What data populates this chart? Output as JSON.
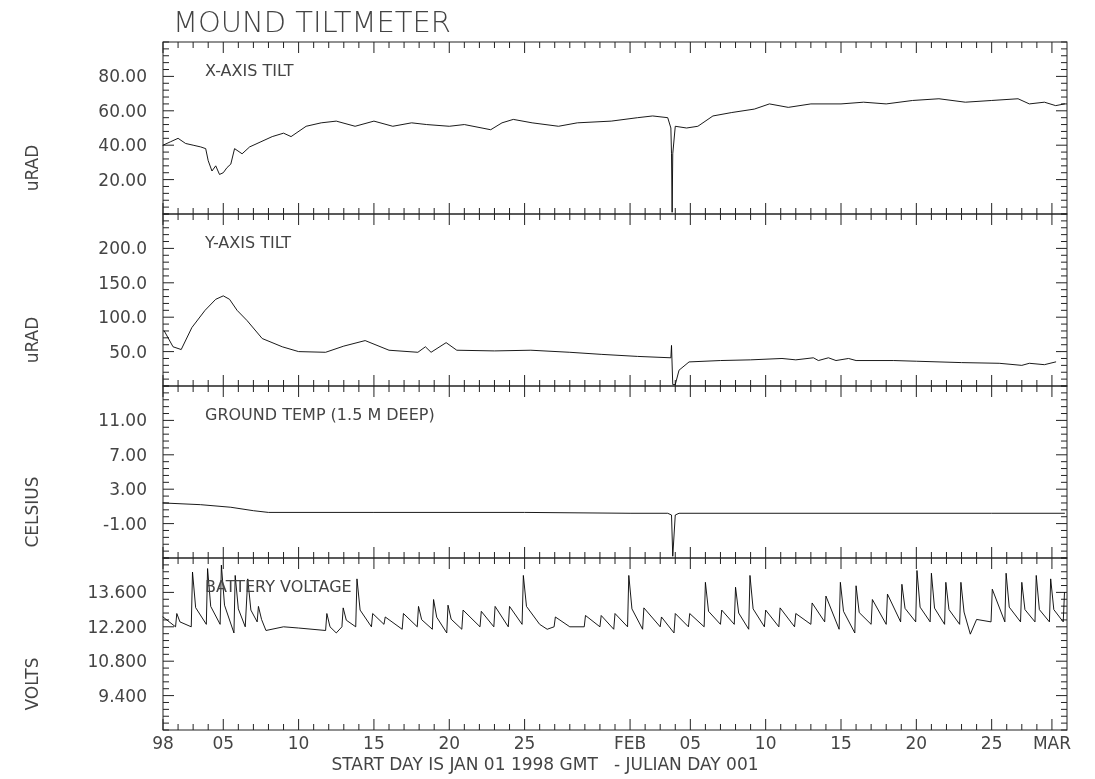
{
  "chart_data": [
    {
      "type": "line",
      "title": "MOUND TILTMETER",
      "subtitle": "X-AXIS TILT",
      "ylabel": "uRAD",
      "color": "#000000",
      "tick_labels": "y",
      "grid": false,
      "xlim": [
        "1998-01-01",
        "1998-03-02"
      ],
      "xticks": [
        {
          "value": "1998-01-01",
          "label": null
        },
        {
          "value": "1998-01-02",
          "label": null
        },
        {
          "value": "1998-01-03",
          "label": null
        },
        {
          "value": "1998-01-04",
          "label": null
        },
        {
          "value": "1998-01-05",
          "label": null
        },
        {
          "value": "1998-01-06",
          "label": null
        },
        {
          "value": "1998-01-07",
          "label": null
        },
        {
          "value": "1998-01-08",
          "label": null
        },
        {
          "value": "1998-01-09",
          "label": null
        },
        {
          "value": "1998-01-10",
          "label": null
        },
        {
          "value": "1998-01-11",
          "label": null
        },
        {
          "value": "1998-01-12",
          "label": null
        },
        {
          "value": "1998-01-13",
          "label": null
        },
        {
          "value": "1998-01-14",
          "label": null
        },
        {
          "value": "1998-01-15",
          "label": null
        },
        {
          "value": "1998-01-16",
          "label": null
        },
        {
          "value": "1998-01-17",
          "label": null
        },
        {
          "value": "1998-01-18",
          "label": null
        },
        {
          "value": "1998-01-19",
          "label": null
        },
        {
          "value": "1998-01-20",
          "label": null
        },
        {
          "value": "1998-01-21",
          "label": null
        },
        {
          "value": "1998-01-22",
          "label": null
        },
        {
          "value": "1998-01-23",
          "label": null
        },
        {
          "value": "1998-01-24",
          "label": null
        },
        {
          "value": "1998-01-25",
          "label": null
        },
        {
          "value": "1998-01-26",
          "label": null
        },
        {
          "value": "1998-01-27",
          "label": null
        },
        {
          "value": "1998-01-28",
          "label": null
        },
        {
          "value": "1998-01-29",
          "label": null
        },
        {
          "value": "1998-01-30",
          "label": null
        },
        {
          "value": "1998-01-31",
          "label": null
        },
        {
          "value": "1998-02-01",
          "label": null
        },
        {
          "value": "1998-02-02",
          "label": null
        },
        {
          "value": "1998-02-03",
          "label": null
        },
        {
          "value": "1998-02-04",
          "label": null
        },
        {
          "value": "1998-02-05",
          "label": null
        },
        {
          "value": "1998-02-06",
          "label": null
        },
        {
          "value": "1998-02-07",
          "label": null
        },
        {
          "value": "1998-02-08",
          "label": null
        },
        {
          "value": "1998-02-09",
          "label": null
        },
        {
          "value": "1998-02-10",
          "label": null
        },
        {
          "value": "1998-02-11",
          "label": null
        },
        {
          "value": "1998-02-12",
          "label": null
        },
        {
          "value": "1998-02-13",
          "label": null
        },
        {
          "value": "1998-02-14",
          "label": null
        },
        {
          "value": "1998-02-15",
          "label": null
        },
        {
          "value": "1998-02-16",
          "label": null
        },
        {
          "value": "1998-02-17",
          "label": null
        },
        {
          "value": "1998-02-18",
          "label": null
        },
        {
          "value": "1998-02-19",
          "label": null
        },
        {
          "value": "1998-02-20",
          "label": null
        },
        {
          "value": "1998-02-21",
          "label": null
        },
        {
          "value": "1998-02-22",
          "label": null
        },
        {
          "value": "1998-02-23",
          "label": null
        },
        {
          "value": "1998-02-24",
          "label": null
        },
        {
          "value": "1998-02-25",
          "label": null
        },
        {
          "value": "1998-02-26",
          "label": null
        },
        {
          "value": "1998-02-27",
          "label": null
        },
        {
          "value": "1998-02-28",
          "label": null
        },
        {
          "value": "1998-03-01",
          "label": null
        }
      ],
      "ylim": [
        0,
        100
      ],
      "yticks": [
        {
          "value": 0,
          "label": null
        },
        {
          "value": 4,
          "label": null
        },
        {
          "value": 8,
          "label": null
        },
        {
          "value": 12,
          "label": null
        },
        {
          "value": 16,
          "label": null
        },
        {
          "value": 20,
          "label": "20.00"
        },
        {
          "value": 24,
          "label": null
        },
        {
          "value": 28,
          "label": null
        },
        {
          "value": 32,
          "label": null
        },
        {
          "value": 36,
          "label": null
        },
        {
          "value": 40,
          "label": "40.00"
        },
        {
          "value": 44,
          "label": null
        },
        {
          "value": 48,
          "label": null
        },
        {
          "value": 52,
          "label": null
        },
        {
          "value": 56,
          "label": null
        },
        {
          "value": 60,
          "label": "60.00"
        },
        {
          "value": 64,
          "label": null
        },
        {
          "value": 68,
          "label": null
        },
        {
          "value": 72,
          "label": null
        },
        {
          "value": 76,
          "label": null
        },
        {
          "value": 80,
          "label": "80.00"
        },
        {
          "value": 84,
          "label": null
        },
        {
          "value": 88,
          "label": null
        },
        {
          "value": 92,
          "label": null
        },
        {
          "value": 96,
          "label": null
        },
        {
          "value": 100,
          "label": null
        }
      ],
      "x": [
        "1998-01-01T00:00",
        "1998-01-01T12:00",
        "1998-01-02T00:00",
        "1998-01-02T12:00",
        "1998-01-03T00:00",
        "1998-01-03T12:00",
        "1998-01-03T20:00",
        "1998-01-04T00:00",
        "1998-01-04T06:00",
        "1998-01-04T12:00",
        "1998-01-04T18:00",
        "1998-01-05T00:00",
        "1998-01-05T06:00",
        "1998-01-05T12:00",
        "1998-01-05T18:00",
        "1998-01-06T06:00",
        "1998-01-06T18:00",
        "1998-01-07T12:00",
        "1998-01-08T06:00",
        "1998-01-09T00:00",
        "1998-01-09T12:00",
        "1998-01-10T12:00",
        "1998-01-11T12:00",
        "1998-01-12T12:00",
        "1998-01-13T18:00",
        "1998-01-15T00:00",
        "1998-01-16T06:00",
        "1998-01-17T12:00",
        "1998-01-18T12:00",
        "1998-01-20T00:00",
        "1998-01-21T00:00",
        "1998-01-22T18:00",
        "1998-01-23T12:00",
        "1998-01-24T06:00",
        "1998-01-25T12:00",
        "1998-01-27T06:00",
        "1998-01-28T12:00",
        "1998-01-30T18:00",
        "1998-02-01T12:00",
        "1998-02-02T12:00",
        "1998-02-03T12:00",
        "1998-02-03T17:00",
        "1998-02-03T18:00",
        "1998-02-03T19:00",
        "1998-02-03T20:00",
        "1998-02-04T00:00",
        "1998-02-04T18:00",
        "1998-02-05T12:00",
        "1998-02-06T12:00",
        "1998-02-07T18:00",
        "1998-02-09T06:00",
        "1998-02-10T06:00",
        "1998-02-11T12:00",
        "1998-02-13T00:00",
        "1998-02-15T00:00",
        "1998-02-16T12:00",
        "1998-02-18T00:00",
        "1998-02-19T18:00",
        "1998-02-21T12:00",
        "1998-02-23T06:00",
        "1998-02-25T00:00",
        "1998-02-26T18:00",
        "1998-02-27T12:00",
        "1998-02-28T12:00",
        "1998-03-01T06:00",
        "1998-03-01T20:00"
      ],
      "values": [
        40,
        42,
        44,
        41,
        40,
        39,
        38,
        31,
        25,
        28,
        23,
        24,
        27,
        29,
        38,
        35,
        39,
        42,
        45,
        47,
        45,
        51,
        53,
        54,
        51,
        54,
        51,
        53,
        52,
        51,
        52,
        49,
        53,
        55,
        53,
        51,
        53,
        54,
        56,
        57,
        56,
        50,
        35,
        1,
        35,
        51,
        50,
        51,
        57,
        59,
        61,
        64,
        62,
        64,
        64,
        65,
        64,
        66,
        67,
        65,
        66,
        67,
        64,
        65,
        63,
        64
      ]
    },
    {
      "type": "line",
      "title": "Y-AXIS TILT",
      "ylabel": "uRAD",
      "color": "#000000",
      "tick_labels": "y",
      "grid": false,
      "xlim": [
        "1998-01-01",
        "1998-03-02"
      ],
      "xticks": [
        {
          "value": "1998-01-01",
          "label": null
        },
        {
          "value": "1998-01-02",
          "label": null
        },
        {
          "value": "1998-01-03",
          "label": null
        },
        {
          "value": "1998-01-04",
          "label": null
        },
        {
          "value": "1998-01-05",
          "label": null
        },
        {
          "value": "1998-01-06",
          "label": null
        },
        {
          "value": "1998-01-07",
          "label": null
        },
        {
          "value": "1998-01-08",
          "label": null
        },
        {
          "value": "1998-01-09",
          "label": null
        },
        {
          "value": "1998-01-10",
          "label": null
        },
        {
          "value": "1998-01-11",
          "label": null
        },
        {
          "value": "1998-01-12",
          "label": null
        },
        {
          "value": "1998-01-13",
          "label": null
        },
        {
          "value": "1998-01-14",
          "label": null
        },
        {
          "value": "1998-01-15",
          "label": null
        },
        {
          "value": "1998-01-16",
          "label": null
        },
        {
          "value": "1998-01-17",
          "label": null
        },
        {
          "value": "1998-01-18",
          "label": null
        },
        {
          "value": "1998-01-19",
          "label": null
        },
        {
          "value": "1998-01-20",
          "label": null
        },
        {
          "value": "1998-01-21",
          "label": null
        },
        {
          "value": "1998-01-22",
          "label": null
        },
        {
          "value": "1998-01-23",
          "label": null
        },
        {
          "value": "1998-01-24",
          "label": null
        },
        {
          "value": "1998-01-25",
          "label": null
        },
        {
          "value": "1998-01-26",
          "label": null
        },
        {
          "value": "1998-01-27",
          "label": null
        },
        {
          "value": "1998-01-28",
          "label": null
        },
        {
          "value": "1998-01-29",
          "label": null
        },
        {
          "value": "1998-01-30",
          "label": null
        },
        {
          "value": "1998-01-31",
          "label": null
        },
        {
          "value": "1998-02-01",
          "label": null
        },
        {
          "value": "1998-02-02",
          "label": null
        },
        {
          "value": "1998-02-03",
          "label": null
        },
        {
          "value": "1998-02-04",
          "label": null
        },
        {
          "value": "1998-02-05",
          "label": null
        },
        {
          "value": "1998-02-06",
          "label": null
        },
        {
          "value": "1998-02-07",
          "label": null
        },
        {
          "value": "1998-02-08",
          "label": null
        },
        {
          "value": "1998-02-09",
          "label": null
        },
        {
          "value": "1998-02-10",
          "label": null
        },
        {
          "value": "1998-02-11",
          "label": null
        },
        {
          "value": "1998-02-12",
          "label": null
        },
        {
          "value": "1998-02-13",
          "label": null
        },
        {
          "value": "1998-02-14",
          "label": null
        },
        {
          "value": "1998-02-15",
          "label": null
        },
        {
          "value": "1998-02-16",
          "label": null
        },
        {
          "value": "1998-02-17",
          "label": null
        },
        {
          "value": "1998-02-18",
          "label": null
        },
        {
          "value": "1998-02-19",
          "label": null
        },
        {
          "value": "1998-02-20",
          "label": null
        },
        {
          "value": "1998-02-21",
          "label": null
        },
        {
          "value": "1998-02-22",
          "label": null
        },
        {
          "value": "1998-02-23",
          "label": null
        },
        {
          "value": "1998-02-24",
          "label": null
        },
        {
          "value": "1998-02-25",
          "label": null
        },
        {
          "value": "1998-02-26",
          "label": null
        },
        {
          "value": "1998-02-27",
          "label": null
        },
        {
          "value": "1998-02-28",
          "label": null
        },
        {
          "value": "1998-03-01",
          "label": null
        }
      ],
      "ylim": [
        0,
        250
      ],
      "yticks": [
        {
          "value": 0,
          "label": null
        },
        {
          "value": 10,
          "label": null
        },
        {
          "value": 20,
          "label": null
        },
        {
          "value": 30,
          "label": null
        },
        {
          "value": 40,
          "label": null
        },
        {
          "value": 50,
          "label": "50.0"
        },
        {
          "value": 60,
          "label": null
        },
        {
          "value": 70,
          "label": null
        },
        {
          "value": 80,
          "label": null
        },
        {
          "value": 90,
          "label": null
        },
        {
          "value": 100,
          "label": "100.0"
        },
        {
          "value": 110,
          "label": null
        },
        {
          "value": 120,
          "label": null
        },
        {
          "value": 130,
          "label": null
        },
        {
          "value": 140,
          "label": null
        },
        {
          "value": 150,
          "label": "150.0"
        },
        {
          "value": 160,
          "label": null
        },
        {
          "value": 170,
          "label": null
        },
        {
          "value": 180,
          "label": null
        },
        {
          "value": 190,
          "label": null
        },
        {
          "value": 200,
          "label": "200.0"
        },
        {
          "value": 210,
          "label": null
        },
        {
          "value": 220,
          "label": null
        },
        {
          "value": 230,
          "label": null
        },
        {
          "value": 240,
          "label": null
        },
        {
          "value": 250,
          "label": null
        }
      ],
      "x": [
        "1998-01-01T02:00",
        "1998-01-01T16:00",
        "1998-01-02T05:00",
        "1998-01-02T22:00",
        "1998-01-03T19:00",
        "1998-01-04T12:00",
        "1998-01-05T00:00",
        "1998-01-05T10:00",
        "1998-01-05T22:00",
        "1998-01-06T14:00",
        "1998-01-07T14:00",
        "1998-01-08T22:00",
        "1998-01-10T00:00",
        "1998-01-11T19:00",
        "1998-01-13T00:00",
        "1998-01-14T10:00",
        "1998-01-16T00:00",
        "1998-01-17T22:00",
        "1998-01-18T10:00",
        "1998-01-18T19:00",
        "1998-01-19T19:00",
        "1998-01-20T12:00",
        "1998-01-23T00:00",
        "1998-01-25T10:00",
        "1998-01-28T00:00",
        "1998-01-30T02:00",
        "1998-02-01T12:00",
        "1998-02-03T17:00",
        "1998-02-03T18:00",
        "1998-02-03T20:00",
        "1998-02-04T00:00",
        "1998-02-04T06:00",
        "1998-02-04T22:00",
        "1998-02-07T00:00",
        "1998-02-09T00:00",
        "1998-02-11T02:00",
        "1998-02-12T00:00",
        "1998-02-13T04:00",
        "1998-02-13T12:00",
        "1998-02-14T04:00",
        "1998-02-14T16:00",
        "1998-02-15T12:00",
        "1998-02-16T00:00",
        "1998-02-18T12:00",
        "1998-02-20T00:00",
        "1998-02-23T00:00",
        "1998-02-25T12:00",
        "1998-02-27T00:00",
        "1998-02-27T12:00",
        "1998-02-28T12:00",
        "1998-03-01T06:00"
      ],
      "values": [
        80,
        57,
        53,
        85,
        110,
        126,
        131,
        126,
        110,
        95,
        69,
        57,
        50,
        49,
        58,
        66,
        52,
        49,
        57,
        49,
        63,
        52,
        51,
        52,
        49,
        46,
        43,
        41,
        59,
        2,
        2,
        23,
        35,
        37,
        38,
        40,
        38,
        41,
        37,
        41,
        37,
        40,
        37,
        37,
        36,
        34,
        33,
        30,
        33,
        31,
        35
      ]
    },
    {
      "type": "line",
      "title": "GROUND TEMP (1.5 M DEEP)",
      "ylabel": "CELSIUS",
      "color": "#000000",
      "tick_labels": "y",
      "grid": false,
      "xlim": [
        "1998-01-01",
        "1998-03-02"
      ],
      "xticks": [
        {
          "value": "1998-01-01",
          "label": null
        },
        {
          "value": "1998-01-02",
          "label": null
        },
        {
          "value": "1998-01-03",
          "label": null
        },
        {
          "value": "1998-01-04",
          "label": null
        },
        {
          "value": "1998-01-05",
          "label": null
        },
        {
          "value": "1998-01-06",
          "label": null
        },
        {
          "value": "1998-01-07",
          "label": null
        },
        {
          "value": "1998-01-08",
          "label": null
        },
        {
          "value": "1998-01-09",
          "label": null
        },
        {
          "value": "1998-01-10",
          "label": null
        },
        {
          "value": "1998-01-11",
          "label": null
        },
        {
          "value": "1998-01-12",
          "label": null
        },
        {
          "value": "1998-01-13",
          "label": null
        },
        {
          "value": "1998-01-14",
          "label": null
        },
        {
          "value": "1998-01-15",
          "label": null
        },
        {
          "value": "1998-01-16",
          "label": null
        },
        {
          "value": "1998-01-17",
          "label": null
        },
        {
          "value": "1998-01-18",
          "label": null
        },
        {
          "value": "1998-01-19",
          "label": null
        },
        {
          "value": "1998-01-20",
          "label": null
        },
        {
          "value": "1998-01-21",
          "label": null
        },
        {
          "value": "1998-01-22",
          "label": null
        },
        {
          "value": "1998-01-23",
          "label": null
        },
        {
          "value": "1998-01-24",
          "label": null
        },
        {
          "value": "1998-01-25",
          "label": null
        },
        {
          "value": "1998-01-26",
          "label": null
        },
        {
          "value": "1998-01-27",
          "label": null
        },
        {
          "value": "1998-01-28",
          "label": null
        },
        {
          "value": "1998-01-29",
          "label": null
        },
        {
          "value": "1998-01-30",
          "label": null
        },
        {
          "value": "1998-01-31",
          "label": null
        },
        {
          "value": "1998-02-01",
          "label": null
        },
        {
          "value": "1998-02-02",
          "label": null
        },
        {
          "value": "1998-02-03",
          "label": null
        },
        {
          "value": "1998-02-04",
          "label": null
        },
        {
          "value": "1998-02-05",
          "label": null
        },
        {
          "value": "1998-02-06",
          "label": null
        },
        {
          "value": "1998-02-07",
          "label": null
        },
        {
          "value": "1998-02-08",
          "label": null
        },
        {
          "value": "1998-02-09",
          "label": null
        },
        {
          "value": "1998-02-10",
          "label": null
        },
        {
          "value": "1998-02-11",
          "label": null
        },
        {
          "value": "1998-02-12",
          "label": null
        },
        {
          "value": "1998-02-13",
          "label": null
        },
        {
          "value": "1998-02-14",
          "label": null
        },
        {
          "value": "1998-02-15",
          "label": null
        },
        {
          "value": "1998-02-16",
          "label": null
        },
        {
          "value": "1998-02-17",
          "label": null
        },
        {
          "value": "1998-02-18",
          "label": null
        },
        {
          "value": "1998-02-19",
          "label": null
        },
        {
          "value": "1998-02-20",
          "label": null
        },
        {
          "value": "1998-02-21",
          "label": null
        },
        {
          "value": "1998-02-22",
          "label": null
        },
        {
          "value": "1998-02-23",
          "label": null
        },
        {
          "value": "1998-02-24",
          "label": null
        },
        {
          "value": "1998-02-25",
          "label": null
        },
        {
          "value": "1998-02-26",
          "label": null
        },
        {
          "value": "1998-02-27",
          "label": null
        },
        {
          "value": "1998-02-28",
          "label": null
        },
        {
          "value": "1998-03-01",
          "label": null
        }
      ],
      "ylim": [
        -5,
        15
      ],
      "yticks": [
        {
          "value": -5,
          "label": null
        },
        {
          "value": -4.2,
          "label": null
        },
        {
          "value": -3.4,
          "label": null
        },
        {
          "value": -2.6,
          "label": null
        },
        {
          "value": -1.8,
          "label": null
        },
        {
          "value": -1,
          "label": "-1.00"
        },
        {
          "value": -0.2,
          "label": null
        },
        {
          "value": 0.6,
          "label": null
        },
        {
          "value": 1.4,
          "label": null
        },
        {
          "value": 2.2,
          "label": null
        },
        {
          "value": 3,
          "label": "3.00"
        },
        {
          "value": 3.8,
          "label": null
        },
        {
          "value": 4.6,
          "label": null
        },
        {
          "value": 5.4,
          "label": null
        },
        {
          "value": 6.2,
          "label": null
        },
        {
          "value": 7,
          "label": "7.00"
        },
        {
          "value": 7.8,
          "label": null
        },
        {
          "value": 8.6,
          "label": null
        },
        {
          "value": 9.4,
          "label": null
        },
        {
          "value": 10.2,
          "label": null
        },
        {
          "value": 11,
          "label": "11.00"
        },
        {
          "value": 11.8,
          "label": null
        },
        {
          "value": 12.6,
          "label": null
        },
        {
          "value": 13.4,
          "label": null
        },
        {
          "value": 14.2,
          "label": null
        },
        {
          "value": 15,
          "label": null
        }
      ],
      "x": [
        "1998-01-01T00:00",
        "1998-01-03T12:00",
        "1998-01-05T12:00",
        "1998-01-07T00:00",
        "1998-01-08T00:00",
        "1998-01-15T00:00",
        "1998-01-25T00:00",
        "1998-02-01T00:00",
        "1998-02-03T12:00",
        "1998-02-03T18:00",
        "1998-02-03T20:00",
        "1998-02-04T00:00",
        "1998-02-04T06:00",
        "1998-02-15T00:00",
        "1998-02-25T00:00",
        "1998-03-01T20:00"
      ],
      "values": [
        1.4,
        1.2,
        0.9,
        0.5,
        0.3,
        0.3,
        0.3,
        0.2,
        0.2,
        0.0,
        -4.8,
        0.0,
        0.2,
        0.2,
        0.2,
        0.2
      ]
    },
    {
      "type": "line",
      "title": "BATTERY VOLTAGE",
      "ylabel": "VOLTS",
      "xlabel": "START DAY IS JAN 01 1998 GMT   - JULIAN DAY 001",
      "color": "#000000",
      "grid": false,
      "xlim": [
        "1998-01-01",
        "1998-03-02"
      ],
      "xticks": [
        {
          "value": "1998-01-01",
          "label": "98"
        },
        {
          "value": "1998-01-02",
          "label": null
        },
        {
          "value": "1998-01-03",
          "label": null
        },
        {
          "value": "1998-01-04",
          "label": null
        },
        {
          "value": "1998-01-05",
          "label": "05"
        },
        {
          "value": "1998-01-06",
          "label": null
        },
        {
          "value": "1998-01-07",
          "label": null
        },
        {
          "value": "1998-01-08",
          "label": null
        },
        {
          "value": "1998-01-09",
          "label": null
        },
        {
          "value": "1998-01-10",
          "label": "10"
        },
        {
          "value": "1998-01-11",
          "label": null
        },
        {
          "value": "1998-01-12",
          "label": null
        },
        {
          "value": "1998-01-13",
          "label": null
        },
        {
          "value": "1998-01-14",
          "label": null
        },
        {
          "value": "1998-01-15",
          "label": "15"
        },
        {
          "value": "1998-01-16",
          "label": null
        },
        {
          "value": "1998-01-17",
          "label": null
        },
        {
          "value": "1998-01-18",
          "label": null
        },
        {
          "value": "1998-01-19",
          "label": null
        },
        {
          "value": "1998-01-20",
          "label": "20"
        },
        {
          "value": "1998-01-21",
          "label": null
        },
        {
          "value": "1998-01-22",
          "label": null
        },
        {
          "value": "1998-01-23",
          "label": null
        },
        {
          "value": "1998-01-24",
          "label": null
        },
        {
          "value": "1998-01-25",
          "label": "25"
        },
        {
          "value": "1998-01-26",
          "label": null
        },
        {
          "value": "1998-01-27",
          "label": null
        },
        {
          "value": "1998-01-28",
          "label": null
        },
        {
          "value": "1998-01-29",
          "label": null
        },
        {
          "value": "1998-01-30",
          "label": null
        },
        {
          "value": "1998-01-31",
          "label": null
        },
        {
          "value": "1998-02-01",
          "label": "FEB"
        },
        {
          "value": "1998-02-02",
          "label": null
        },
        {
          "value": "1998-02-03",
          "label": null
        },
        {
          "value": "1998-02-04",
          "label": null
        },
        {
          "value": "1998-02-05",
          "label": "05"
        },
        {
          "value": "1998-02-06",
          "label": null
        },
        {
          "value": "1998-02-07",
          "label": null
        },
        {
          "value": "1998-02-08",
          "label": null
        },
        {
          "value": "1998-02-09",
          "label": null
        },
        {
          "value": "1998-02-10",
          "label": "10"
        },
        {
          "value": "1998-02-11",
          "label": null
        },
        {
          "value": "1998-02-12",
          "label": null
        },
        {
          "value": "1998-02-13",
          "label": null
        },
        {
          "value": "1998-02-14",
          "label": null
        },
        {
          "value": "1998-02-15",
          "label": "15"
        },
        {
          "value": "1998-02-16",
          "label": null
        },
        {
          "value": "1998-02-17",
          "label": null
        },
        {
          "value": "1998-02-18",
          "label": null
        },
        {
          "value": "1998-02-19",
          "label": null
        },
        {
          "value": "1998-02-20",
          "label": "20"
        },
        {
          "value": "1998-02-21",
          "label": null
        },
        {
          "value": "1998-02-22",
          "label": null
        },
        {
          "value": "1998-02-23",
          "label": null
        },
        {
          "value": "1998-02-24",
          "label": null
        },
        {
          "value": "1998-02-25",
          "label": "25"
        },
        {
          "value": "1998-02-26",
          "label": null
        },
        {
          "value": "1998-02-27",
          "label": null
        },
        {
          "value": "1998-02-28",
          "label": null
        },
        {
          "value": "1998-03-01",
          "label": "MAR"
        }
      ],
      "ylim": [
        8,
        15
      ],
      "yticks": [
        {
          "value": 8,
          "label": null
        },
        {
          "value": 8.28,
          "label": null
        },
        {
          "value": 8.56,
          "label": null
        },
        {
          "value": 8.84,
          "label": null
        },
        {
          "value": 9.12,
          "label": null
        },
        {
          "value": 9.4,
          "label": "9.400"
        },
        {
          "value": 9.68,
          "label": null
        },
        {
          "value": 9.96,
          "label": null
        },
        {
          "value": 10.24,
          "label": null
        },
        {
          "value": 10.52,
          "label": null
        },
        {
          "value": 10.8,
          "label": "10.800"
        },
        {
          "value": 11.08,
          "label": null
        },
        {
          "value": 11.36,
          "label": null
        },
        {
          "value": 11.64,
          "label": null
        },
        {
          "value": 11.92,
          "label": null
        },
        {
          "value": 12.2,
          "label": "12.200"
        },
        {
          "value": 12.48,
          "label": null
        },
        {
          "value": 12.76,
          "label": null
        },
        {
          "value": 13.04,
          "label": null
        },
        {
          "value": 13.32,
          "label": null
        },
        {
          "value": 13.6,
          "label": "13.600"
        },
        {
          "value": 13.88,
          "label": null
        },
        {
          "value": 14.16,
          "label": null
        },
        {
          "value": 14.44,
          "label": null
        },
        {
          "value": 14.72,
          "label": null
        },
        {
          "value": 15,
          "label": null
        }
      ],
      "x": [
        "1998-01-01T00:00",
        "1998-01-01T20:00",
        "1998-01-01T22:00",
        "1998-01-02T03:00",
        "1998-01-02T21:00",
        "1998-01-02T23:00",
        "1998-01-03T04:00",
        "1998-01-03T21:00",
        "1998-01-03T23:00",
        "1998-01-04T04:00",
        "1998-01-04T19:00",
        "1998-01-04T21:00",
        "1998-01-05T02:00",
        "1998-01-05T17:00",
        "1998-01-05T19:00",
        "1998-01-06T00:00",
        "1998-01-06T11:00",
        "1998-01-06T15:00",
        "1998-01-06T20:00",
        "1998-01-07T06:00",
        "1998-01-07T08:00",
        "1998-01-07T13:00",
        "1998-01-07T20:00",
        "1998-01-09T00:00",
        "1998-01-10T00:00",
        "1998-01-11T19:00",
        "1998-01-11T21:00",
        "1998-01-12T02:00",
        "1998-01-12T12:00",
        "1998-01-12T21:00",
        "1998-01-12T23:00",
        "1998-01-13T04:00",
        "1998-01-13T19:00",
        "1998-01-13T21:00",
        "1998-01-14T02:00",
        "1998-01-14T20:00",
        "1998-01-14T22:00",
        "1998-01-15T16:00",
        "1998-01-15T18:00",
        "1998-01-16T21:00",
        "1998-01-16T23:00",
        "1998-01-17T21:00",
        "1998-01-17T23:00",
        "1998-01-18T04:00",
        "1998-01-18T21:00",
        "1998-01-18T23:00",
        "1998-01-19T04:00",
        "1998-01-19T20:00",
        "1998-01-19T22:00",
        "1998-01-20T03:00",
        "1998-01-20T20:00",
        "1998-01-20T22:00",
        "1998-01-22T01:00",
        "1998-01-22T03:00",
        "1998-01-22T23:00",
        "1998-01-23T01:00",
        "1998-01-23T22:00",
        "1998-01-24T00:00",
        "1998-01-24T20:00",
        "1998-01-24T22:00",
        "1998-01-25T03:00",
        "1998-01-26T00:00",
        "1998-01-26T12:00",
        "1998-01-26T23:00",
        "1998-01-27T01:00",
        "1998-01-28T00:00",
        "1998-01-28T23:00",
        "1998-01-29T01:00",
        "1998-01-30T00:00",
        "1998-01-30T02:00",
        "1998-01-30T22:00",
        "1998-01-31T00:00",
        "1998-01-31T20:00",
        "1998-01-31T22:00",
        "1998-02-01T03:00",
        "1998-02-01T20:00",
        "1998-02-01T22:00",
        "1998-02-03T00:00",
        "1998-02-03T02:00",
        "1998-02-03T22:00",
        "1998-02-04T00:00",
        "1998-02-04T21:00",
        "1998-02-04T23:00",
        "1998-02-05T22:00",
        "1998-02-06T00:00",
        "1998-02-06T05:00",
        "1998-02-07T00:00",
        "1998-02-07T02:00",
        "1998-02-07T22:00",
        "1998-02-08T00:00",
        "1998-02-08T05:00",
        "1998-02-08T21:00",
        "1998-02-08T23:00",
        "1998-02-09T04:00",
        "1998-02-09T22:00",
        "1998-02-10T00:00",
        "1998-02-10T21:00",
        "1998-02-10T23:00",
        "1998-02-11T22:00",
        "1998-02-12T00:00",
        "1998-02-13T00:00",
        "1998-02-13T02:00",
        "1998-02-13T22:00",
        "1998-02-14T00:00",
        "1998-02-14T21:00",
        "1998-02-14T23:00",
        "1998-02-15T04:00",
        "1998-02-15T22:00",
        "1998-02-16T00:00",
        "1998-02-16T05:00",
        "1998-02-17T00:00",
        "1998-02-17T02:00",
        "1998-02-18T00:00",
        "1998-02-18T02:00",
        "1998-02-18T23:00",
        "1998-02-19T01:00",
        "1998-02-19T06:00",
        "1998-02-19T23:00",
        "1998-02-20T01:00",
        "1998-02-20T06:00",
        "1998-02-20T22:00",
        "1998-02-21T00:00",
        "1998-02-21T05:00",
        "1998-02-21T21:00",
        "1998-02-21T23:00",
        "1998-02-22T04:00",
        "1998-02-22T21:00",
        "1998-02-22T23:00",
        "1998-02-23T04:00",
        "1998-02-23T14:00",
        "1998-02-24T00:00",
        "1998-02-24T23:00",
        "1998-02-25T01:00",
        "1998-02-25T21:00",
        "1998-02-25T23:00",
        "1998-02-26T04:00",
        "1998-02-26T22:00",
        "1998-02-27T00:00",
        "1998-02-27T05:00",
        "1998-02-27T21:00",
        "1998-02-27T23:00",
        "1998-02-28T04:00",
        "1998-02-28T20:00",
        "1998-02-28T22:00",
        "1998-03-01T03:00",
        "1998-03-01T18:00",
        "1998-03-01T20:00"
      ],
      "values": [
        12.6,
        12.2,
        12.74,
        12.4,
        12.2,
        14.43,
        12.98,
        12.3,
        14.57,
        13.03,
        12.3,
        14.71,
        13.08,
        11.95,
        14.29,
        12.93,
        12.2,
        14.15,
        12.88,
        12.4,
        13.03,
        12.5,
        12.05,
        12.2,
        12.15,
        12.05,
        12.74,
        12.2,
        11.95,
        12.2,
        12.97,
        12.47,
        12.2,
        14.15,
        12.88,
        12.2,
        12.74,
        12.3,
        12.6,
        12.1,
        12.74,
        12.2,
        13.03,
        12.49,
        12.1,
        13.31,
        12.59,
        11.95,
        13.08,
        12.51,
        12.1,
        12.88,
        12.2,
        12.83,
        12.2,
        13.03,
        12.2,
        13.03,
        12.3,
        14.29,
        13.03,
        12.3,
        12.1,
        12.2,
        12.6,
        12.2,
        12.2,
        12.66,
        12.2,
        12.66,
        12.1,
        12.74,
        12.2,
        14.29,
        12.93,
        12.1,
        12.97,
        12.2,
        12.6,
        11.95,
        12.74,
        12.2,
        12.74,
        12.2,
        14.01,
        12.83,
        12.3,
        12.88,
        12.3,
        13.81,
        12.76,
        12.1,
        14.29,
        12.93,
        12.2,
        12.88,
        12.2,
        12.97,
        12.2,
        12.74,
        12.3,
        13.17,
        12.4,
        13.45,
        12.1,
        14.01,
        12.83,
        11.95,
        13.87,
        12.78,
        12.3,
        13.31,
        12.3,
        13.53,
        12.4,
        13.93,
        12.95,
        12.4,
        14.49,
        13.0,
        12.4,
        14.38,
        12.96,
        12.3,
        14.01,
        12.9,
        12.3,
        14.01,
        12.8,
        11.9,
        12.5,
        12.4,
        13.73,
        12.4,
        14.38,
        13.0,
        12.4,
        14.01,
        12.9,
        12.4,
        14.29,
        12.9,
        12.4,
        14.15,
        12.9,
        12.4,
        13.59
      ]
    }
  ]
}
